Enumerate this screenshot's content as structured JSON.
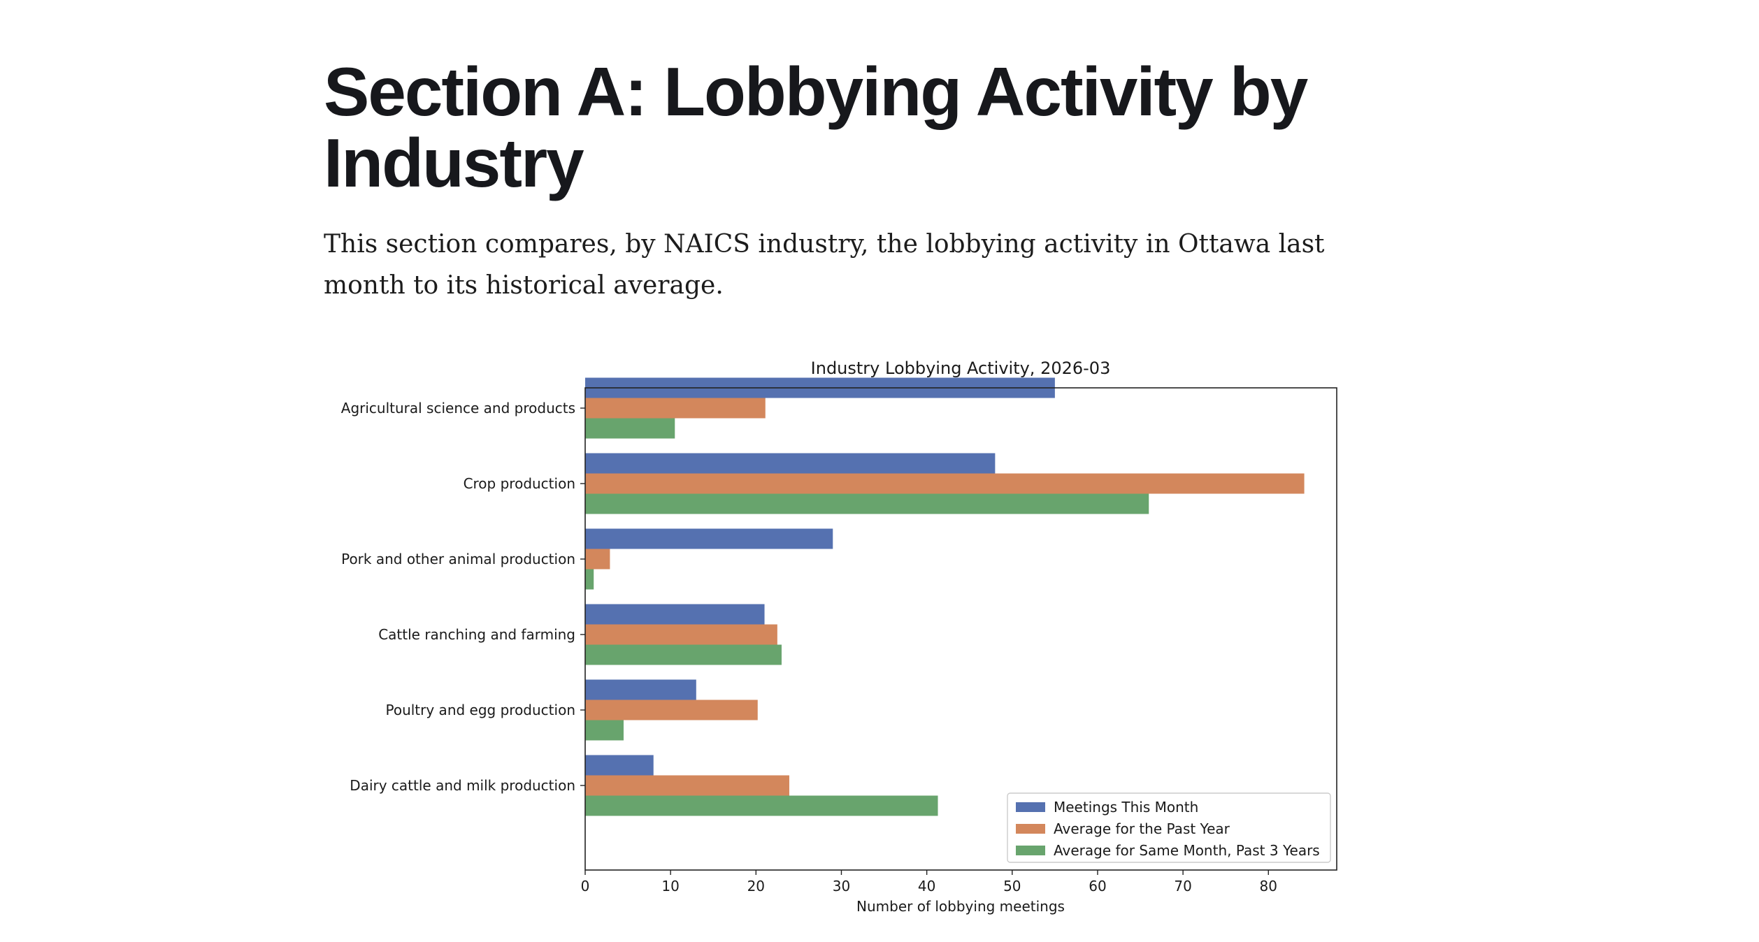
{
  "page": {
    "heading": "Section A: Lobbying Activity by Industry",
    "intro": "This section compares, by NAICS industry, the lobbying activity in Ottawa last month to its historical average."
  },
  "chart_data": {
    "type": "bar",
    "orientation": "horizontal",
    "title": "Industry Lobbying Activity, 2026-03",
    "xlabel": "Number of lobbying meetings",
    "ylabel": "",
    "xlim": [
      0,
      88
    ],
    "xticks": [
      0,
      10,
      20,
      30,
      40,
      50,
      60,
      70,
      80
    ],
    "categories": [
      "Agricultural science and products",
      "Crop production",
      "Pork and other animal production",
      "Cattle ranching and farming",
      "Poultry and egg production",
      "Dairy cattle and milk production"
    ],
    "series": [
      {
        "name": "Meetings This Month",
        "color": "#5571b0",
        "values": [
          55,
          48,
          29,
          21,
          13,
          8
        ]
      },
      {
        "name": "Average for the Past Year",
        "color": "#d3875c",
        "values": [
          21.1,
          84.2,
          2.9,
          22.5,
          20.2,
          23.9
        ]
      },
      {
        "name": "Average for Same Month, Past 3 Years",
        "color": "#68a46d",
        "values": [
          10.5,
          66,
          1,
          23,
          4.5,
          41.3
        ]
      }
    ],
    "grid": false,
    "legend_position": "lower right"
  }
}
